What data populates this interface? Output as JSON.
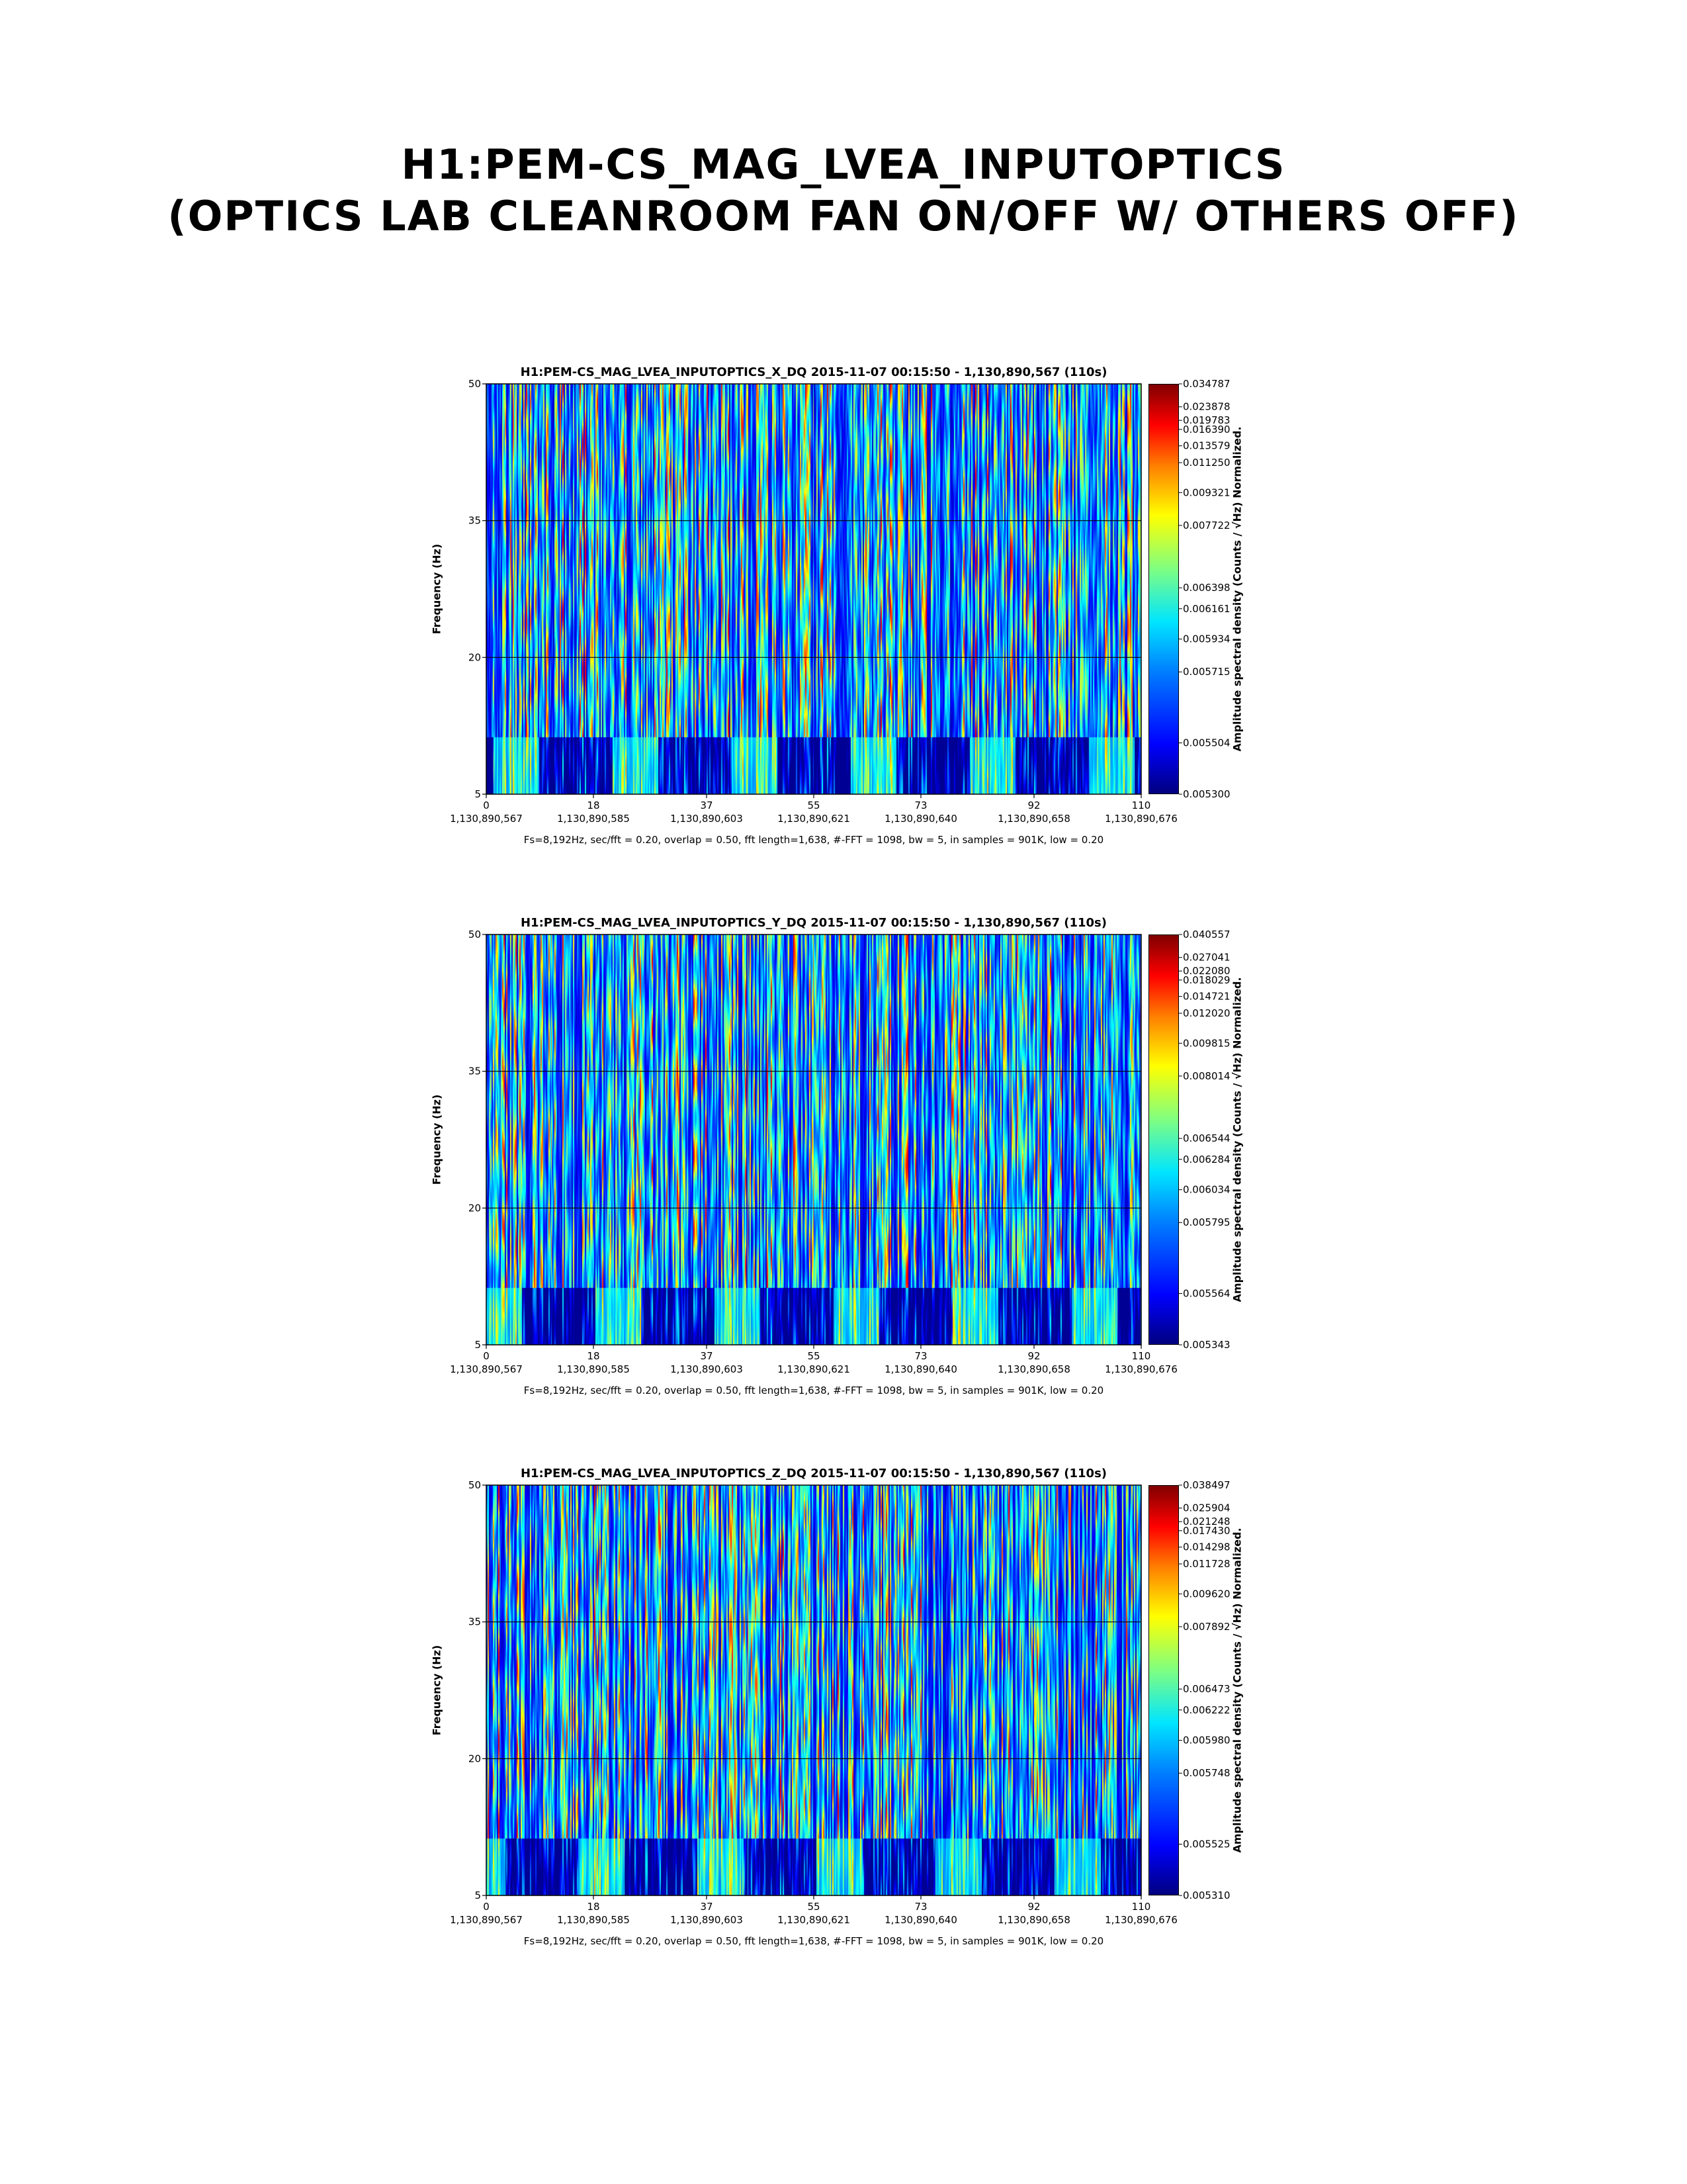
{
  "page": {
    "title_line1": "H1:PEM-CS_MAG_LVEA_INPUTOPTICS",
    "title_line2": "(Optics Lab cleanroom fan on/off w/ others off)"
  },
  "chart_data": [
    {
      "type": "heatmap",
      "title": "H1:PEM-CS_MAG_LVEA_INPUTOPTICS_X_DQ 2015-11-07 00:15:50 - 1,130,890,567 (110s)",
      "ylabel": "Frequency (Hz)",
      "colorbar_label": "Amplitude spectral density (Counts / √Hz) Normalized.",
      "ylim": [
        5,
        50
      ],
      "yticks": [
        "5",
        "20",
        "35",
        "50"
      ],
      "xlim": [
        0,
        110
      ],
      "xticks": [
        "0",
        "18",
        "37",
        "55",
        "73",
        "92",
        "110"
      ],
      "xticks_gps": [
        "1,130,890,567",
        "1,130,890,585",
        "1,130,890,603",
        "1,130,890,621",
        "1,130,890,640",
        "1,130,890,658",
        "1,130,890,676"
      ],
      "colorbar_ticks": [
        "0.005300",
        "0.005504",
        "0.005715",
        "0.005934",
        "0.006161",
        "0.006398",
        "0.007722",
        "0.009321",
        "0.011250",
        "0.013579",
        "0.016390",
        "0.019783",
        "0.023878",
        "0.034787"
      ],
      "grid": true,
      "params": "Fs=8,192Hz, sec/fft = 0.20, overlap = 0.50, fft length=1,638, #-FFT = 1098, bw = 5, in samples = 901K, low = 0.20"
    },
    {
      "type": "heatmap",
      "title": "H1:PEM-CS_MAG_LVEA_INPUTOPTICS_Y_DQ 2015-11-07 00:15:50 - 1,130,890,567 (110s)",
      "ylabel": "Frequency (Hz)",
      "colorbar_label": "Amplitude spectral density (Counts / √Hz) Normalized.",
      "ylim": [
        5,
        50
      ],
      "yticks": [
        "5",
        "20",
        "35",
        "50"
      ],
      "xlim": [
        0,
        110
      ],
      "xticks": [
        "0",
        "18",
        "37",
        "55",
        "73",
        "92",
        "110"
      ],
      "xticks_gps": [
        "1,130,890,567",
        "1,130,890,585",
        "1,130,890,603",
        "1,130,890,621",
        "1,130,890,640",
        "1,130,890,658",
        "1,130,890,676"
      ],
      "colorbar_ticks": [
        "0.005343",
        "0.005564",
        "0.005795",
        "0.006034",
        "0.006284",
        "0.006544",
        "0.008014",
        "0.009815",
        "0.012020",
        "0.014721",
        "0.018029",
        "0.022080",
        "0.027041",
        "0.040557"
      ],
      "grid": true,
      "params": "Fs=8,192Hz, sec/fft = 0.20, overlap = 0.50, fft length=1,638, #-FFT = 1098, bw = 5, in samples = 901K, low = 0.20"
    },
    {
      "type": "heatmap",
      "title": "H1:PEM-CS_MAG_LVEA_INPUTOPTICS_Z_DQ 2015-11-07 00:15:50 - 1,130,890,567 (110s)",
      "ylabel": "Frequency (Hz)",
      "colorbar_label": "Amplitude spectral density (Counts / √Hz) Normalized.",
      "ylim": [
        5,
        50
      ],
      "yticks": [
        "5",
        "20",
        "35",
        "50"
      ],
      "xlim": [
        0,
        110
      ],
      "xticks": [
        "0",
        "18",
        "37",
        "55",
        "73",
        "92",
        "110"
      ],
      "xticks_gps": [
        "1,130,890,567",
        "1,130,890,585",
        "1,130,890,603",
        "1,130,890,621",
        "1,130,890,640",
        "1,130,890,658",
        "1,130,890,676"
      ],
      "colorbar_ticks": [
        "0.005310",
        "0.005525",
        "0.005748",
        "0.005980",
        "0.006222",
        "0.006473",
        "0.007892",
        "0.009620",
        "0.011728",
        "0.014298",
        "0.017430",
        "0.021248",
        "0.025904",
        "0.038497"
      ],
      "grid": true,
      "params": "Fs=8,192Hz, sec/fft = 0.20, overlap = 0.50, fft length=1,638, #-FFT = 1098, bw = 5, in samples = 901K, low = 0.20"
    }
  ]
}
